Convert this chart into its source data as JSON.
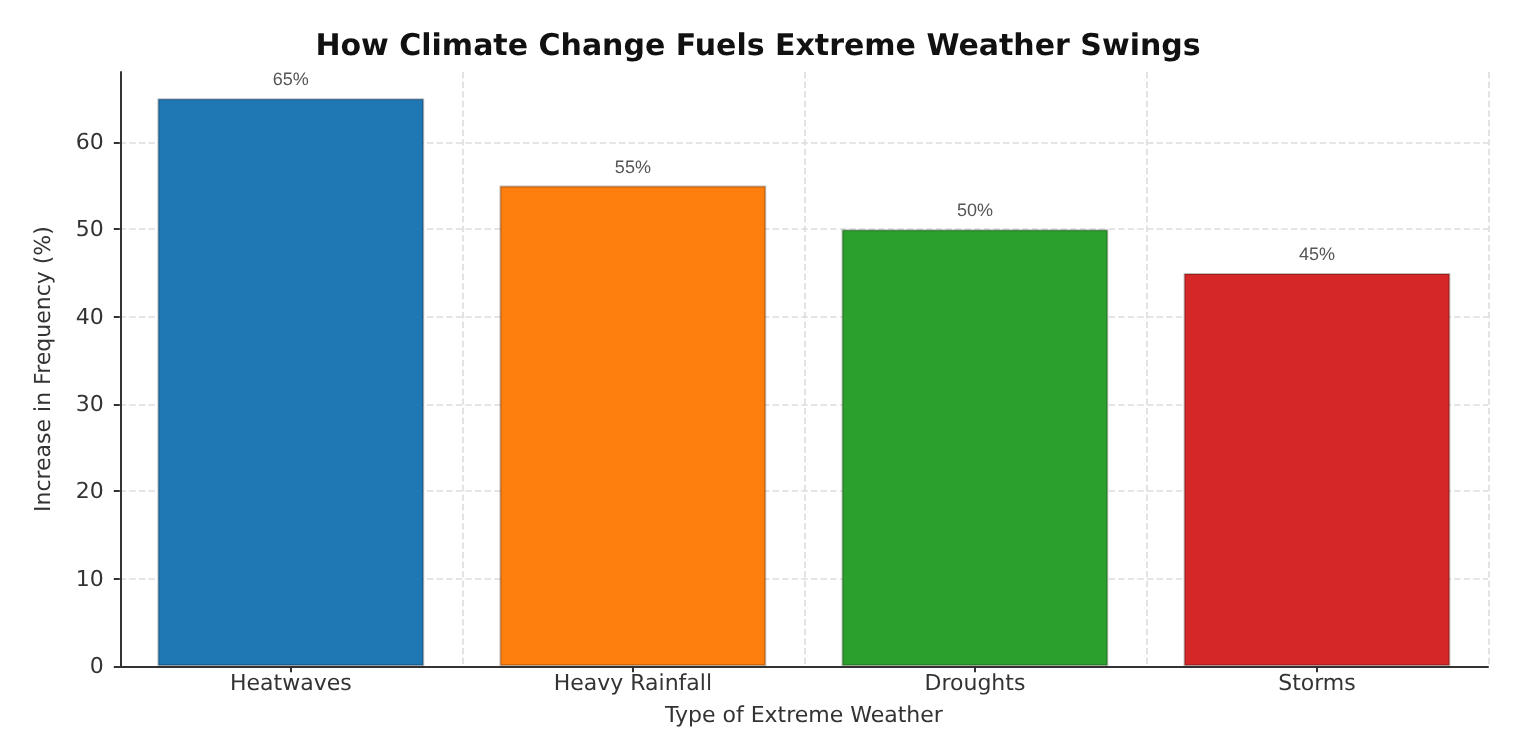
{
  "chart_data": {
    "type": "bar",
    "title": "How Climate Change Fuels Extreme Weather Swings",
    "xlabel": "Type of Extreme Weather",
    "ylabel": "Increase in Frequency (%)",
    "categories": [
      "Heatwaves",
      "Heavy Rainfall",
      "Droughts",
      "Storms"
    ],
    "values": [
      65,
      55,
      50,
      45
    ],
    "colors": [
      "#1f77b4",
      "#ff7f0e",
      "#2ca02c",
      "#d62728"
    ],
    "value_labels": [
      "65%",
      "55%",
      "50%",
      "45%"
    ],
    "ylim": [
      0,
      68
    ],
    "yticks": [
      0,
      10,
      20,
      30,
      40,
      50,
      60
    ],
    "grid": true
  }
}
